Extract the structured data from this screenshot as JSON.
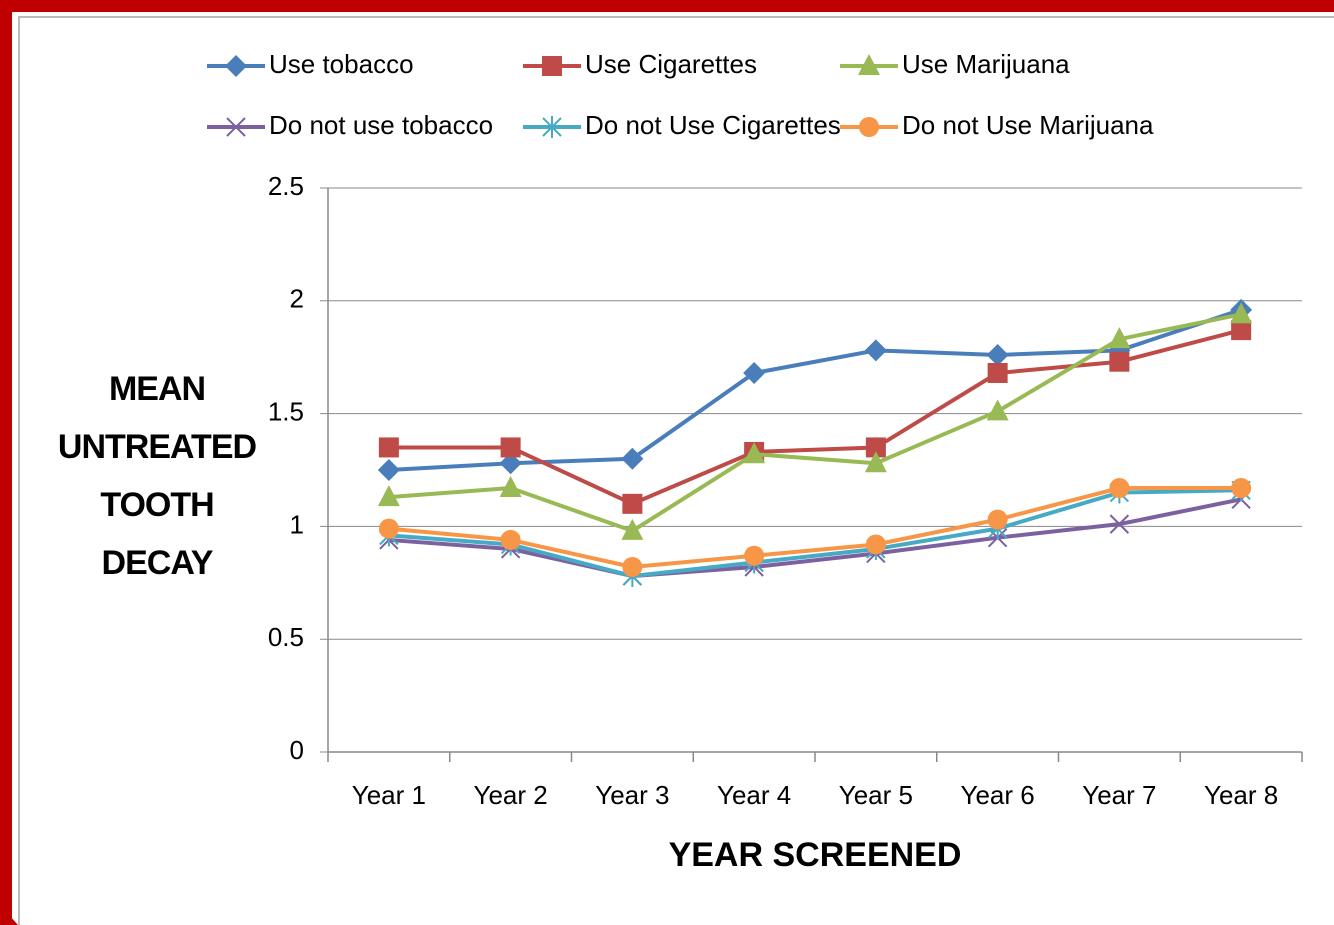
{
  "chart_data": {
    "type": "line",
    "x_label": "YEAR SCREENED",
    "y_label": "MEAN UNTREATED TOOTH DECAY",
    "categories": [
      "Year 1",
      "Year 2",
      "Year 3",
      "Year 4",
      "Year 5",
      "Year 6",
      "Year 7",
      "Year 8"
    ],
    "series": [
      {
        "name": "Use tobacco",
        "color": "#4a7ebb",
        "marker": "diamond",
        "values": [
          1.25,
          1.28,
          1.3,
          1.68,
          1.78,
          1.76,
          1.78,
          1.96
        ]
      },
      {
        "name": "Use Cigarettes",
        "color": "#be4b48",
        "marker": "square",
        "values": [
          1.35,
          1.35,
          1.1,
          1.33,
          1.35,
          1.68,
          1.73,
          1.87
        ]
      },
      {
        "name": "Use Marijuana",
        "color": "#98b954",
        "marker": "triangle",
        "values": [
          1.13,
          1.17,
          0.98,
          1.32,
          1.28,
          1.51,
          1.83,
          1.94
        ]
      },
      {
        "name": "Do not use tobacco",
        "color": "#7d60a0",
        "marker": "x",
        "values": [
          0.94,
          0.9,
          0.78,
          0.82,
          0.88,
          0.95,
          1.01,
          1.12
        ]
      },
      {
        "name": "Do not Use Cigarettes",
        "color": "#46aac5",
        "marker": "star",
        "values": [
          0.96,
          0.92,
          0.78,
          0.84,
          0.9,
          0.99,
          1.15,
          1.16
        ]
      },
      {
        "name": "Do not Use Marijuana",
        "color": "#f79646",
        "marker": "circle",
        "values": [
          0.99,
          0.94,
          0.82,
          0.87,
          0.92,
          1.03,
          1.17,
          1.17
        ]
      }
    ],
    "ylim": [
      0,
      2.5
    ],
    "yticks": [
      0,
      0.5,
      1,
      1.5,
      2,
      2.5
    ],
    "grid": true,
    "legend": "top"
  }
}
